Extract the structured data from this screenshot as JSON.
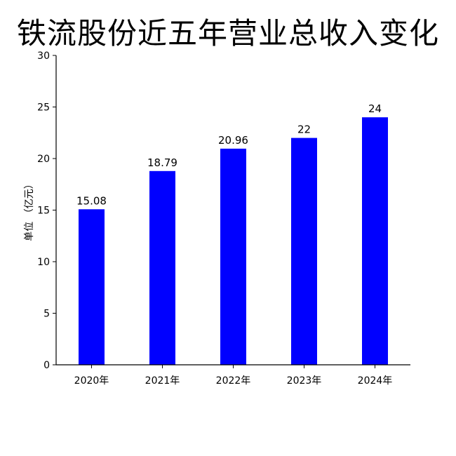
{
  "chart_data": {
    "type": "bar",
    "title": "铁流股份近五年营业总收入变化",
    "xlabel": "",
    "ylabel": "单位 （亿元）",
    "categories": [
      "2020年",
      "2021年",
      "2022年",
      "2023年",
      "2024年"
    ],
    "values": [
      15.08,
      18.79,
      20.96,
      22,
      24
    ],
    "data_labels": [
      "15.08",
      "18.79",
      "20.96",
      "22",
      "24"
    ],
    "ylim": [
      0,
      30
    ],
    "yticks": [
      0,
      5,
      10,
      15,
      20,
      25,
      30
    ],
    "ytick_labels": [
      "0",
      "5",
      "10",
      "15",
      "20",
      "25",
      "30"
    ],
    "grid": false,
    "legend": "none",
    "bar_color": "#0000ff",
    "axis_color": "#000000"
  }
}
